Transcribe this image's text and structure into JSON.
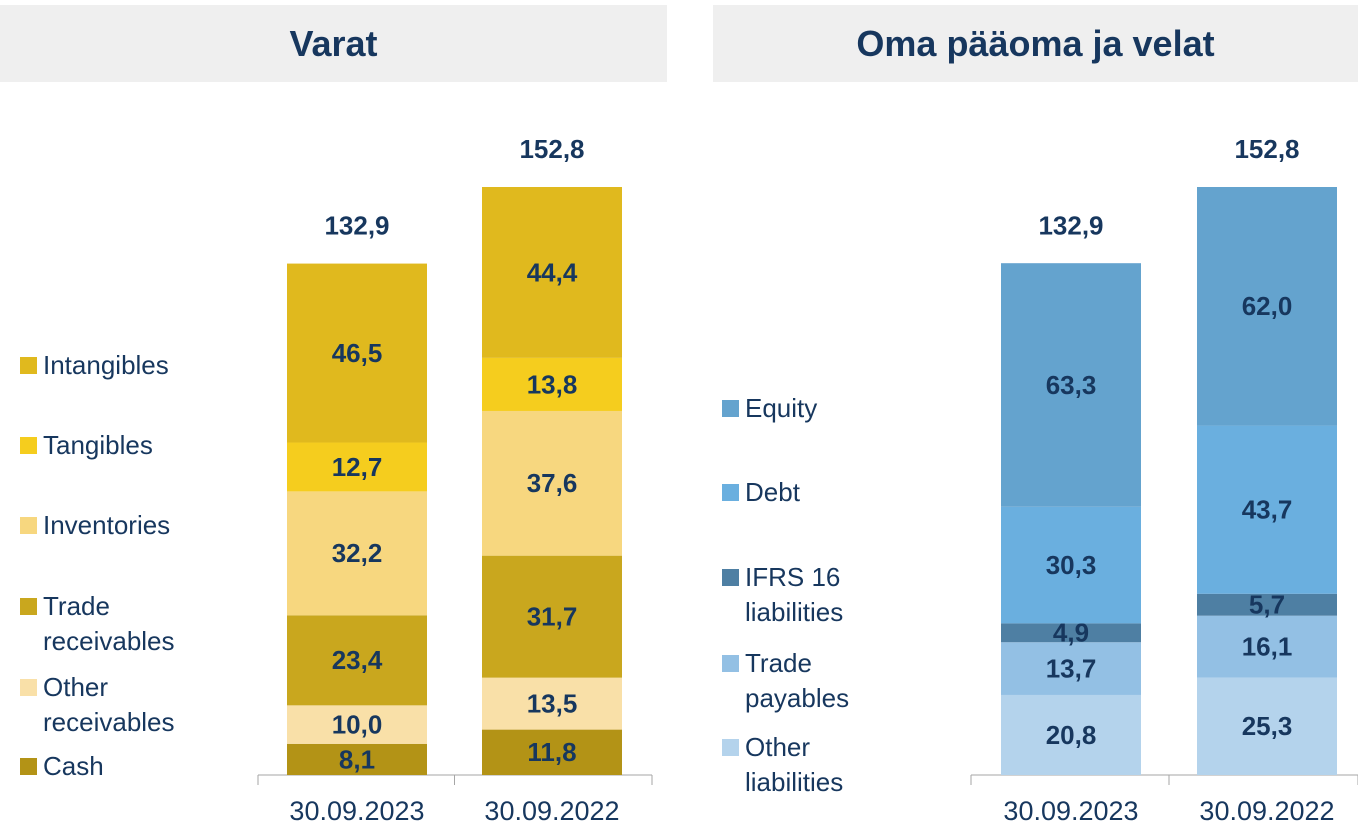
{
  "chart_data": [
    {
      "type": "stacked-bar",
      "title": "Varat",
      "categories": [
        "30.09.2023",
        "30.09.2022"
      ],
      "totals": [
        132.9,
        152.8
      ],
      "total_labels": [
        "132,9",
        "152,8"
      ],
      "series": [
        {
          "name": "Cash",
          "color": "#b39316",
          "values": [
            8.1,
            11.8
          ],
          "value_labels": [
            "8,1",
            "11,8"
          ]
        },
        {
          "name": "Other receivables",
          "color": "#f9e0a8",
          "values": [
            10.0,
            13.5
          ],
          "value_labels": [
            "10,0",
            "13,5"
          ]
        },
        {
          "name": "Trade receivables",
          "color": "#c9a71e",
          "values": [
            23.4,
            31.7
          ],
          "value_labels": [
            "23,4",
            "31,7"
          ]
        },
        {
          "name": "Inventories",
          "color": "#f7d77f",
          "values": [
            32.2,
            37.6
          ],
          "value_labels": [
            "32,2",
            "37,6"
          ]
        },
        {
          "name": "Tangibles",
          "color": "#f5cd1e",
          "values": [
            12.7,
            13.8
          ],
          "value_labels": [
            "12,7",
            "13,8"
          ]
        },
        {
          "name": "Intangibles",
          "color": "#e0b91e",
          "values": [
            46.5,
            44.4
          ],
          "value_labels": [
            "46,5",
            "44,4"
          ]
        }
      ]
    },
    {
      "type": "stacked-bar",
      "title": "Oma pääoma ja velat",
      "categories": [
        "30.09.2023",
        "30.09.2022"
      ],
      "totals": [
        132.9,
        152.8
      ],
      "total_labels": [
        "132,9",
        "152,8"
      ],
      "series": [
        {
          "name": "Other liabilities",
          "color": "#b4d3ec",
          "values": [
            20.8,
            25.3
          ],
          "value_labels": [
            "20,8",
            "25,3"
          ]
        },
        {
          "name": "Trade payables",
          "color": "#93c0e4",
          "values": [
            13.7,
            16.1
          ],
          "value_labels": [
            "13,7",
            "16,1"
          ]
        },
        {
          "name": "IFRS 16 liabilities",
          "color": "#4e7fa3",
          "values": [
            4.9,
            5.7
          ],
          "value_labels": [
            "4,9",
            "5,7"
          ]
        },
        {
          "name": "Debt",
          "color": "#6aafdf",
          "values": [
            30.3,
            43.7
          ],
          "value_labels": [
            "30,3",
            "43,7"
          ]
        },
        {
          "name": "Equity",
          "color": "#64a3ce",
          "values": [
            63.3,
            62.0
          ],
          "value_labels": [
            "63,3",
            "62,0"
          ]
        }
      ]
    }
  ]
}
